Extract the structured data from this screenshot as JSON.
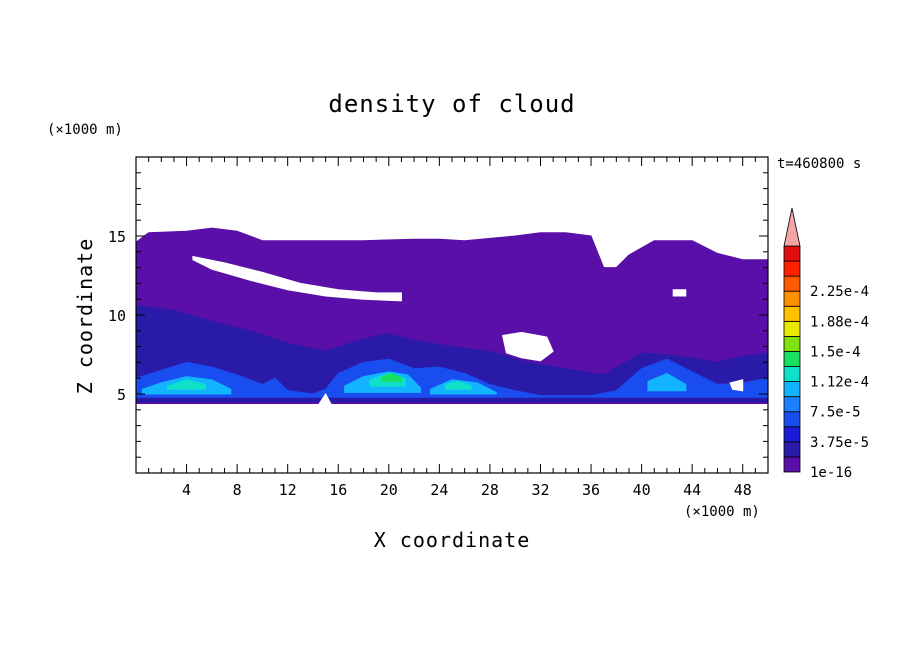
{
  "chart_data": {
    "type": "heatmap",
    "title": "density of cloud",
    "xlabel": "X coordinate",
    "ylabel": "Z coordinate",
    "x_unit": "(×1000 m)",
    "y_unit": "(×1000 m)",
    "time_label": "t=460800 s",
    "xlim": [
      0,
      50
    ],
    "ylim": [
      0,
      20
    ],
    "x_ticks": [
      4,
      8,
      12,
      16,
      20,
      24,
      28,
      32,
      36,
      40,
      44,
      48
    ],
    "y_ticks": [
      5,
      10,
      15
    ],
    "x_tick_labels": [
      "4",
      "8",
      "12",
      "16",
      "20",
      "24",
      "28",
      "32",
      "36",
      "40",
      "44",
      "48"
    ],
    "y_tick_labels": [
      "5",
      "10",
      "15"
    ],
    "colorbar": {
      "labels": [
        "1e-16",
        "3.75e-5",
        "7.5e-5",
        "1.12e-4",
        "1.5e-4",
        "1.88e-4",
        "2.25e-4"
      ],
      "label_levels": [
        0,
        2,
        4,
        6,
        8,
        10,
        12
      ],
      "colors": [
        "#5a0fa8",
        "#2a1aa8",
        "#1a1ad8",
        "#1a4df0",
        "#1a80ff",
        "#12b4ff",
        "#10e0c8",
        "#18e060",
        "#80e010",
        "#e8e800",
        "#ffc000",
        "#ff9000",
        "#ff5a00",
        "#ff2000",
        "#e01010"
      ],
      "overflow_color": "#f4a6a6"
    },
    "layers": [
      {
        "level": 0,
        "color": "#5a0fa8",
        "top": [
          [
            0,
            14.6
          ],
          [
            1,
            15.2
          ],
          [
            4,
            15.3
          ],
          [
            6,
            15.5
          ],
          [
            8,
            15.3
          ],
          [
            10,
            14.7
          ],
          [
            14,
            14.7
          ],
          [
            18,
            14.7
          ],
          [
            22,
            14.8
          ],
          [
            24,
            14.8
          ],
          [
            26,
            14.7
          ],
          [
            30,
            15.0
          ],
          [
            32,
            15.2
          ],
          [
            34,
            15.2
          ],
          [
            36,
            15.0
          ],
          [
            37,
            13.0
          ],
          [
            38,
            13.0
          ],
          [
            39,
            13.8
          ],
          [
            41,
            14.7
          ],
          [
            44,
            14.7
          ],
          [
            46,
            13.9
          ],
          [
            48,
            13.5
          ],
          [
            50,
            13.5
          ]
        ],
        "bottom_z": 4.4
      },
      {
        "level": 1,
        "color": "#2a1aa8",
        "top": [
          [
            0,
            10.6
          ],
          [
            3,
            10.3
          ],
          [
            6,
            9.6
          ],
          [
            9,
            9.0
          ],
          [
            12,
            8.2
          ],
          [
            15,
            7.7
          ],
          [
            18,
            8.5
          ],
          [
            20,
            8.8
          ],
          [
            22,
            8.4
          ],
          [
            25,
            8.0
          ],
          [
            28,
            7.7
          ],
          [
            31,
            7.0
          ],
          [
            34,
            6.6
          ],
          [
            37,
            6.2
          ],
          [
            40,
            7.6
          ],
          [
            43,
            7.4
          ],
          [
            46,
            7.0
          ],
          [
            48,
            7.4
          ],
          [
            50,
            7.6
          ]
        ],
        "bottom_z": 4.5
      },
      {
        "level": 3,
        "color": "#1a4df0",
        "top": [
          [
            0,
            6.0
          ],
          [
            2,
            6.5
          ],
          [
            4,
            7.0
          ],
          [
            6,
            6.7
          ],
          [
            8,
            6.2
          ],
          [
            10,
            5.6
          ],
          [
            11,
            6.0
          ],
          [
            12,
            5.2
          ],
          [
            14,
            5.0
          ],
          [
            15,
            5.3
          ],
          [
            16,
            6.3
          ],
          [
            18,
            7.0
          ],
          [
            20,
            7.2
          ],
          [
            22,
            6.6
          ],
          [
            24,
            6.7
          ],
          [
            26,
            6.3
          ],
          [
            28,
            5.6
          ],
          [
            30,
            5.2
          ],
          [
            32,
            4.9
          ],
          [
            36,
            4.9
          ],
          [
            38,
            5.2
          ],
          [
            40,
            6.6
          ],
          [
            42,
            7.2
          ],
          [
            44,
            6.4
          ],
          [
            46,
            5.6
          ],
          [
            48,
            5.7
          ],
          [
            50,
            6.0
          ]
        ],
        "bottom_z": 4.8
      },
      {
        "level": 5,
        "color": "#12b4ff",
        "top": [
          [
            0.5,
            5.3
          ],
          [
            2,
            5.7
          ],
          [
            4,
            6.1
          ],
          [
            6,
            5.9
          ],
          [
            7.5,
            5.3
          ]
        ],
        "bottom_z": 5.0
      },
      {
        "level": 5,
        "color": "#12b4ff",
        "top": [
          [
            16.5,
            5.5
          ],
          [
            18,
            6.1
          ],
          [
            20,
            6.4
          ],
          [
            21.5,
            6.2
          ],
          [
            22.5,
            5.4
          ]
        ],
        "bottom_z": 5.1
      },
      {
        "level": 5,
        "color": "#12b4ff",
        "top": [
          [
            23.3,
            5.3
          ],
          [
            25,
            5.9
          ],
          [
            27,
            5.7
          ],
          [
            28.5,
            5.1
          ]
        ],
        "bottom_z": 5.0
      },
      {
        "level": 5,
        "color": "#12b4ff",
        "top": [
          [
            40.5,
            5.8
          ],
          [
            42,
            6.3
          ],
          [
            43.5,
            5.6
          ]
        ],
        "bottom_z": 5.2
      },
      {
        "level": 6,
        "color": "#10e0c8",
        "top": [
          [
            2.5,
            5.5
          ],
          [
            4,
            5.9
          ],
          [
            5.5,
            5.6
          ]
        ],
        "bottom_z": 5.3
      },
      {
        "level": 6,
        "color": "#10e0c8",
        "top": [
          [
            18.5,
            5.9
          ],
          [
            20,
            6.3
          ],
          [
            21.3,
            6.0
          ]
        ],
        "bottom_z": 5.5
      },
      {
        "level": 6,
        "color": "#10e0c8",
        "top": [
          [
            24.5,
            5.6
          ],
          [
            25.5,
            5.8
          ],
          [
            26.5,
            5.5
          ]
        ],
        "bottom_z": 5.3
      },
      {
        "level": 7,
        "color": "#18e060",
        "top": [
          [
            19.5,
            6.1
          ],
          [
            20.3,
            6.3
          ],
          [
            21,
            6.0
          ]
        ],
        "bottom_z": 5.8
      }
    ],
    "gaps": [
      {
        "points": [
          [
            4.5,
            13.7
          ],
          [
            7,
            13.3
          ],
          [
            10,
            12.7
          ],
          [
            13,
            12.0
          ],
          [
            16,
            11.6
          ],
          [
            19,
            11.4
          ],
          [
            21,
            11.4
          ],
          [
            21,
            10.9
          ],
          [
            18,
            11.0
          ],
          [
            15,
            11.2
          ],
          [
            12,
            11.6
          ],
          [
            9,
            12.2
          ],
          [
            6,
            12.9
          ],
          [
            4.5,
            13.5
          ]
        ]
      },
      {
        "points": [
          [
            29,
            8.7
          ],
          [
            30.5,
            8.9
          ],
          [
            32.5,
            8.6
          ],
          [
            33,
            7.7
          ],
          [
            32,
            7.1
          ],
          [
            30.5,
            7.3
          ],
          [
            29.3,
            7.6
          ]
        ]
      },
      {
        "points": [
          [
            42.5,
            11.6
          ],
          [
            43.5,
            11.6
          ],
          [
            43.5,
            11.2
          ],
          [
            42.5,
            11.2
          ]
        ]
      },
      {
        "points": [
          [
            14.5,
            4.4
          ],
          [
            15,
            5.0
          ],
          [
            15.4,
            4.4
          ]
        ]
      },
      {
        "points": [
          [
            47,
            5.7
          ],
          [
            48,
            5.9
          ],
          [
            48,
            5.2
          ],
          [
            47.2,
            5.3
          ]
        ]
      }
    ]
  }
}
